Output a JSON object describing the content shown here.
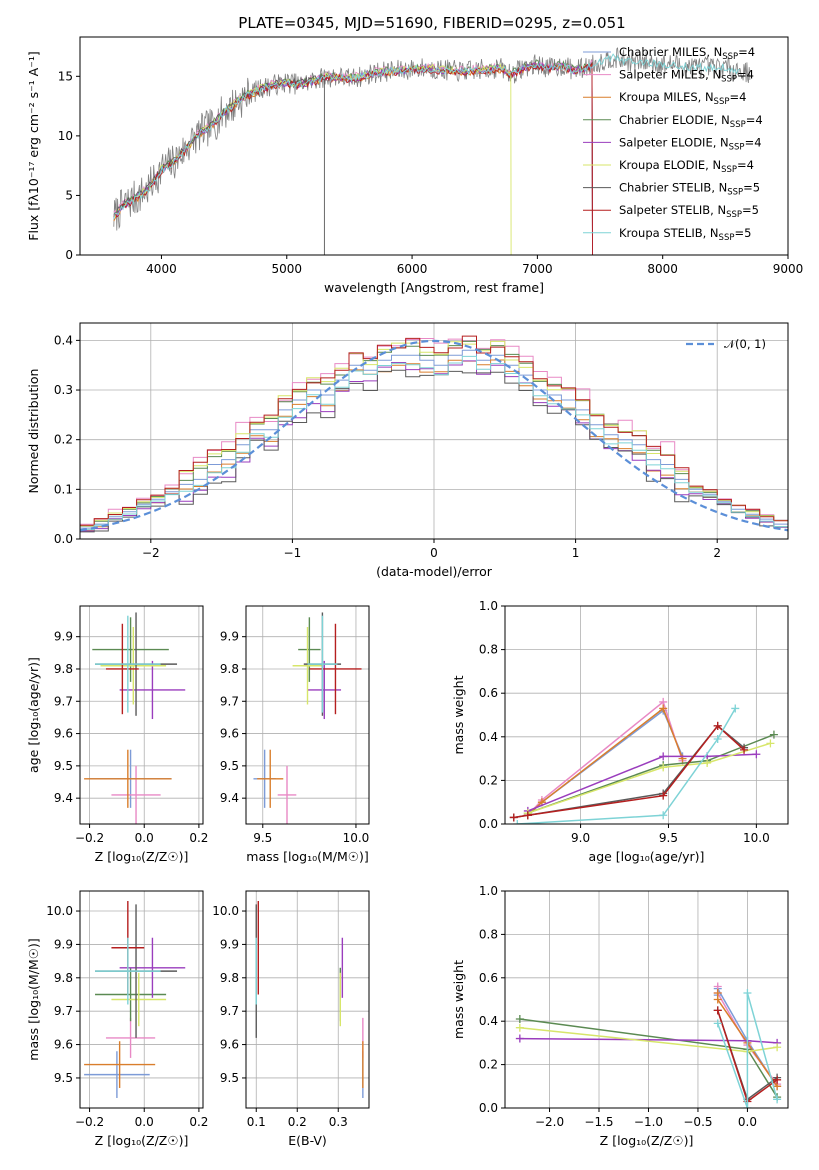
{
  "figure": {
    "title": "PLATE=0345, MJD=51690, FIBERID=0295, z=0.051"
  },
  "colors": {
    "Chabrier MILES": "#7d9bd7",
    "Salpeter MILES": "#e889c5",
    "Kroupa MILES": "#d97e2c",
    "Chabrier ELODIE": "#5b8a52",
    "Salpeter ELODIE": "#9a3dbd",
    "Kroupa ELODIE": "#d7e66a",
    "Chabrier STELIB": "#5a5a5a",
    "Salpeter STELIB": "#b51f1f",
    "Kroupa STELIB": "#7ed3d6"
  },
  "chart_data": [
    {
      "id": "spectrum",
      "type": "line",
      "title": "PLATE=0345, MJD=51690, FIBERID=0295, z=0.051",
      "xlabel": "wavelength [Angstrom, rest frame]",
      "ylabel": "Flux [fλ10⁻¹⁷ erg cm⁻² s⁻¹ A⁻¹]",
      "xlim": [
        3350,
        9000
      ],
      "ylim": [
        0,
        18.3
      ],
      "xticks": [
        4000,
        5000,
        6000,
        7000,
        8000,
        9000
      ],
      "yticks": [
        0,
        5,
        10,
        15
      ],
      "grid": false,
      "legend_position": "right",
      "data_color": "#808080",
      "data_x_range": [
        3620,
        8700
      ],
      "data_anchor_x": [
        3620,
        3700,
        3800,
        3900,
        4000,
        4100,
        4200,
        4300,
        4400,
        4500,
        4600,
        4700,
        4800,
        4900,
        5000,
        5100,
        5200,
        5300,
        5400,
        5500,
        5600,
        5700,
        5800,
        5900,
        6000,
        6100,
        6200,
        6300,
        6400,
        6500,
        6600,
        6700,
        6800,
        6900,
        7000,
        7100,
        7200,
        7300,
        7400,
        7500,
        7600,
        7700,
        7800,
        7900,
        8000,
        8100,
        8200,
        8300,
        8400,
        8500,
        8600,
        8700
      ],
      "data_anchor_y": [
        3.2,
        4.2,
        4.8,
        5.6,
        7.2,
        7.8,
        9.0,
        10.2,
        10.8,
        12.0,
        12.8,
        13.5,
        14.0,
        14.3,
        14.5,
        14.3,
        14.6,
        14.9,
        15.0,
        14.8,
        15.0,
        15.3,
        15.4,
        15.5,
        15.6,
        15.7,
        15.6,
        15.5,
        15.4,
        15.5,
        15.6,
        15.7,
        15.2,
        15.8,
        16.0,
        15.7,
        15.9,
        15.5,
        15.8,
        16.2,
        16.6,
        16.3,
        16.2,
        16.2,
        16.0,
        16.0,
        15.8,
        15.8,
        15.7,
        15.8,
        15.5,
        15.3
      ],
      "model_x_range": [
        3620,
        8620
      ],
      "model_offsets": [
        0.0,
        0.15,
        -0.1,
        0.1,
        -0.05,
        0.05,
        0.12,
        -0.12,
        -0.02
      ],
      "model_cutoffs": [
        7440,
        7440,
        7440,
        7440,
        7440,
        6790,
        5300,
        7440,
        8620
      ],
      "legend": [
        {
          "label": "Chabrier MILES, N",
          "sub": "SSP",
          "tail": "=4"
        },
        {
          "label": "Salpeter MILES, N",
          "sub": "SSP",
          "tail": "=4"
        },
        {
          "label": "Kroupa MILES, N",
          "sub": "SSP",
          "tail": "=4"
        },
        {
          "label": "Chabrier ELODIE, N",
          "sub": "SSP",
          "tail": "=4"
        },
        {
          "label": "Salpeter ELODIE, N",
          "sub": "SSP",
          "tail": "=4"
        },
        {
          "label": "Kroupa ELODIE, N",
          "sub": "SSP",
          "tail": "=4"
        },
        {
          "label": "Chabrier STELIB, N",
          "sub": "SSP",
          "tail": "=5"
        },
        {
          "label": "Salpeter STELIB, N",
          "sub": "SSP",
          "tail": "=5"
        },
        {
          "label": "Kroupa STELIB, N",
          "sub": "SSP",
          "tail": "=5"
        }
      ]
    },
    {
      "id": "residuals",
      "type": "line",
      "xlabel": "(data-model)/error",
      "ylabel": "Normed distribution",
      "xlim": [
        -2.5,
        2.5
      ],
      "ylim": [
        0,
        0.435
      ],
      "xticks": [
        -2,
        -1,
        0,
        1,
        2
      ],
      "yticks": [
        0.0,
        0.1,
        0.2,
        0.3,
        0.4
      ],
      "grid": true,
      "legend_position": "top-right",
      "legend_label": "𝒩(0, 1)",
      "reference_curve": "normal",
      "reference_color": "#5b8fd8",
      "bin_width": 0.1,
      "hist_x": [
        -2.5,
        -2.4,
        -2.3,
        -2.2,
        -2.1,
        -2.0,
        -1.9,
        -1.8,
        -1.7,
        -1.6,
        -1.5,
        -1.4,
        -1.3,
        -1.2,
        -1.1,
        -1.0,
        -0.9,
        -0.8,
        -0.7,
        -0.6,
        -0.5,
        -0.4,
        -0.3,
        -0.2,
        -0.1,
        0.0,
        0.1,
        0.2,
        0.3,
        0.4,
        0.5,
        0.6,
        0.7,
        0.8,
        0.9,
        1.0,
        1.1,
        1.2,
        1.3,
        1.4,
        1.5,
        1.6,
        1.7,
        1.8,
        1.9,
        2.0,
        2.1,
        2.2,
        2.3,
        2.4
      ],
      "hist_base": [
        0.022,
        0.03,
        0.045,
        0.055,
        0.07,
        0.08,
        0.095,
        0.11,
        0.12,
        0.15,
        0.16,
        0.19,
        0.22,
        0.22,
        0.26,
        0.28,
        0.3,
        0.29,
        0.32,
        0.35,
        0.34,
        0.36,
        0.37,
        0.37,
        0.36,
        0.35,
        0.37,
        0.38,
        0.36,
        0.37,
        0.35,
        0.33,
        0.3,
        0.29,
        0.28,
        0.26,
        0.23,
        0.21,
        0.2,
        0.19,
        0.16,
        0.15,
        0.12,
        0.1,
        0.09,
        0.075,
        0.06,
        0.05,
        0.04,
        0.03
      ],
      "hist_offsets": [
        0.0,
        0.02,
        -0.01,
        0.01,
        -0.015,
        0.012,
        -0.02,
        0.015,
        -0.008
      ]
    },
    {
      "id": "age-vs-Z",
      "type": "scatter",
      "xlabel": "Z [log₁₀(Z/Z☉)]",
      "ylabel": "age  [log₁₀(age/yr)]",
      "xlim": [
        -0.235,
        0.215
      ],
      "ylim": [
        9.32,
        9.995
      ],
      "xticks": [
        -0.2,
        0.0,
        0.2
      ],
      "yticks": [
        9.4,
        9.5,
        9.6,
        9.7,
        9.8,
        9.9
      ],
      "grid": true,
      "x": [
        -0.05,
        -0.03,
        -0.06,
        -0.05,
        0.03,
        -0.04,
        -0.03,
        -0.08,
        -0.06
      ],
      "y": [
        9.46,
        9.41,
        9.46,
        9.86,
        9.735,
        9.81,
        9.815,
        9.8,
        9.815
      ],
      "xerr": [
        0.15,
        0.09,
        0.16,
        0.14,
        0.12,
        0.12,
        0.15,
        0.06,
        0.12
      ],
      "yerr": [
        0.09,
        0.09,
        0.09,
        0.1,
        0.09,
        0.12,
        0.16,
        0.14,
        0.15
      ]
    },
    {
      "id": "age-vs-mass",
      "type": "scatter",
      "xlabel": "mass [log₁₀(M/M☉)]",
      "ylabel": "",
      "xlim": [
        9.41,
        10.07
      ],
      "ylim": [
        9.32,
        9.995
      ],
      "xticks": [
        9.5,
        10.0
      ],
      "yticks": [
        9.4,
        9.5,
        9.6,
        9.7,
        9.8,
        9.9
      ],
      "grid": true,
      "x": [
        9.51,
        9.63,
        9.54,
        9.75,
        9.83,
        9.74,
        9.82,
        9.89,
        9.82
      ],
      "y": [
        9.46,
        9.41,
        9.46,
        9.86,
        9.735,
        9.81,
        9.815,
        9.8,
        9.815
      ],
      "xerr": [
        0.06,
        0.05,
        0.07,
        0.06,
        0.09,
        0.08,
        0.1,
        0.14,
        0.08
      ],
      "yerr": [
        0.09,
        0.09,
        0.09,
        0.1,
        0.09,
        0.12,
        0.16,
        0.14,
        0.15
      ]
    },
    {
      "id": "mass-weight-vs-age",
      "type": "line",
      "xlabel": "age  [log₁₀(age/yr)]",
      "ylabel": "mass weight",
      "xlim": [
        8.57,
        10.18
      ],
      "ylim": [
        0,
        1.0
      ],
      "xticks": [
        9.0,
        9.5,
        10.0
      ],
      "yticks": [
        0.0,
        0.2,
        0.4,
        0.6,
        0.8,
        1.0
      ],
      "grid": true,
      "series": [
        {
          "x": [
            8.7,
            8.78,
            9.47,
            9.58
          ],
          "y": [
            0.04,
            0.1,
            0.52,
            0.31
          ]
        },
        {
          "x": [
            8.7,
            8.78,
            9.47,
            9.58
          ],
          "y": [
            0.04,
            0.11,
            0.56,
            0.29
          ]
        },
        {
          "x": [
            8.7,
            8.78,
            9.47,
            9.58
          ],
          "y": [
            0.04,
            0.1,
            0.53,
            0.3
          ]
        },
        {
          "x": [
            8.7,
            9.47,
            9.72,
            10.1
          ],
          "y": [
            0.05,
            0.27,
            0.29,
            0.41
          ]
        },
        {
          "x": [
            8.7,
            9.47,
            9.72,
            10.0
          ],
          "y": [
            0.06,
            0.31,
            0.31,
            0.32
          ]
        },
        {
          "x": [
            8.7,
            9.47,
            9.72,
            10.08
          ],
          "y": [
            0.05,
            0.26,
            0.28,
            0.37
          ]
        },
        {
          "x": [
            8.62,
            8.7,
            9.47,
            9.78,
            9.93
          ],
          "y": [
            0.03,
            0.04,
            0.14,
            0.45,
            0.35
          ]
        },
        {
          "x": [
            8.62,
            8.7,
            9.47,
            9.78,
            9.93
          ],
          "y": [
            0.03,
            0.04,
            0.13,
            0.45,
            0.34
          ]
        },
        {
          "x": [
            8.64,
            9.47,
            9.78,
            9.88
          ],
          "y": [
            0.0,
            0.04,
            0.39,
            0.53
          ]
        }
      ]
    },
    {
      "id": "mass-vs-Z",
      "type": "scatter",
      "xlabel": "Z [log₁₀(Z/Z☉)]",
      "ylabel": "mass [log₁₀(M/M☉)]",
      "xlim": [
        -0.235,
        0.215
      ],
      "ylim": [
        9.41,
        10.06
      ],
      "xticks": [
        -0.2,
        0.0,
        0.2
      ],
      "yticks": [
        9.5,
        9.6,
        9.7,
        9.8,
        9.9,
        10.0
      ],
      "grid": true,
      "x": [
        -0.1,
        -0.05,
        -0.09,
        -0.05,
        0.03,
        -0.02,
        -0.03,
        -0.06,
        -0.06
      ],
      "y": [
        9.51,
        9.62,
        9.54,
        9.75,
        9.83,
        9.735,
        9.82,
        9.89,
        9.82
      ],
      "xerr": [
        0.12,
        0.09,
        0.13,
        0.13,
        0.12,
        0.1,
        0.15,
        0.06,
        0.12
      ],
      "yerr": [
        0.07,
        0.06,
        0.07,
        0.08,
        0.09,
        0.08,
        0.2,
        0.14,
        0.1
      ]
    },
    {
      "id": "mass-vs-EBV",
      "type": "scatter",
      "xlabel": "E(B-V)",
      "ylabel": "",
      "xlim": [
        0.075,
        0.375
      ],
      "ylim": [
        9.41,
        10.06
      ],
      "xticks": [
        0.1,
        0.2,
        0.3
      ],
      "yticks": [
        9.5,
        9.6,
        9.7,
        9.8,
        9.9,
        10.0
      ],
      "grid": true,
      "x": [
        0.36,
        0.36,
        0.36,
        0.305,
        0.31,
        0.305,
        0.1,
        0.105,
        0.1
      ],
      "y": [
        9.51,
        9.62,
        9.54,
        9.75,
        9.83,
        9.735,
        9.82,
        9.89,
        9.82
      ],
      "xerr": [
        0.0,
        0.0,
        0.0,
        0.0,
        0.0,
        0.0,
        0.0,
        0.0,
        0.0
      ],
      "yerr": [
        0.07,
        0.06,
        0.07,
        0.08,
        0.09,
        0.08,
        0.2,
        0.14,
        0.1
      ]
    },
    {
      "id": "mass-weight-vs-Z",
      "type": "line",
      "xlabel": "Z [log₁₀(Z/Z☉)]",
      "ylabel": "mass weight",
      "xlim": [
        -2.45,
        0.41
      ],
      "ylim": [
        0,
        1.0
      ],
      "xticks": [
        -2.0,
        -1.5,
        -1.0,
        -0.5,
        0.0
      ],
      "yticks": [
        0.0,
        0.2,
        0.4,
        0.6,
        0.8,
        1.0
      ],
      "grid": true,
      "series": [
        {
          "x": [
            -0.3,
            -0.3,
            0.0,
            0.3
          ],
          "y": [
            0.52,
            0.55,
            0.31,
            0.1
          ]
        },
        {
          "x": [
            -0.3,
            -0.3,
            0.0,
            0.3
          ],
          "y": [
            0.56,
            0.53,
            0.29,
            0.11
          ]
        },
        {
          "x": [
            -0.3,
            -0.3,
            0.0,
            0.3
          ],
          "y": [
            0.53,
            0.5,
            0.3,
            0.1
          ]
        },
        {
          "x": [
            -2.3,
            0.0,
            0.3
          ],
          "y": [
            0.41,
            0.27,
            0.05
          ]
        },
        {
          "x": [
            -2.3,
            0.0,
            0.3
          ],
          "y": [
            0.32,
            0.31,
            0.3
          ]
        },
        {
          "x": [
            -2.3,
            0.0,
            0.3
          ],
          "y": [
            0.37,
            0.26,
            0.28
          ]
        },
        {
          "x": [
            -0.3,
            0.0,
            0.3
          ],
          "y": [
            0.45,
            0.04,
            0.14
          ]
        },
        {
          "x": [
            -0.3,
            0.0,
            0.3
          ],
          "y": [
            0.45,
            0.03,
            0.13
          ]
        },
        {
          "x": [
            -0.3,
            0.0,
            0.0,
            0.3
          ],
          "y": [
            0.39,
            0.0,
            0.53,
            0.04
          ]
        }
      ]
    }
  ]
}
